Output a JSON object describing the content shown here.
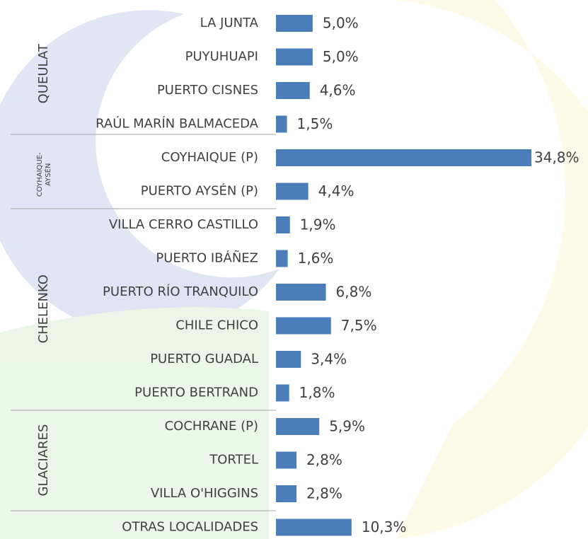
{
  "chart_data": {
    "type": "bar",
    "orientation": "horizontal",
    "color": "#4a7ebb",
    "categories": [
      "LA JUNTA",
      "PUYUHUAPI",
      "PUERTO CISNES",
      "RAÚL MARÍN BALMACEDA",
      "COYHAIQUE (P)",
      "PUERTO AYSÉN (P)",
      "VILLA CERRO CASTILLO",
      "PUERTO IBÁÑEZ",
      "PUERTO RÍO TRANQUILO",
      "CHILE CHICO",
      "PUERTO GUADAL",
      "PUERTO BERTRAND",
      "COCHRANE (P)",
      "TORTEL",
      "VILLA O'HIGGINS",
      "OTRAS LOCALIDADES"
    ],
    "values": [
      5.0,
      5.0,
      4.6,
      1.5,
      34.8,
      4.4,
      1.9,
      1.6,
      6.8,
      7.5,
      3.4,
      1.8,
      5.9,
      2.8,
      2.8,
      10.3
    ],
    "value_labels": [
      "5,0%",
      "5,0%",
      "4,6%",
      "1,5%",
      "34,8%",
      "4,4%",
      "1,9%",
      "1,6%",
      "6,8%",
      "7,5%",
      "3,4%",
      "1,8%",
      "5,9%",
      "2,8%",
      "2,8%",
      "10,3%"
    ],
    "groups": [
      {
        "lines": [
          "QUEULAT"
        ]
      },
      {
        "lines": [
          "COYHAIQUE-",
          "AYSÉN"
        ]
      },
      {
        "lines": [
          "CHELENKO"
        ]
      },
      {
        "lines": [
          "GLACIARES"
        ]
      }
    ]
  }
}
